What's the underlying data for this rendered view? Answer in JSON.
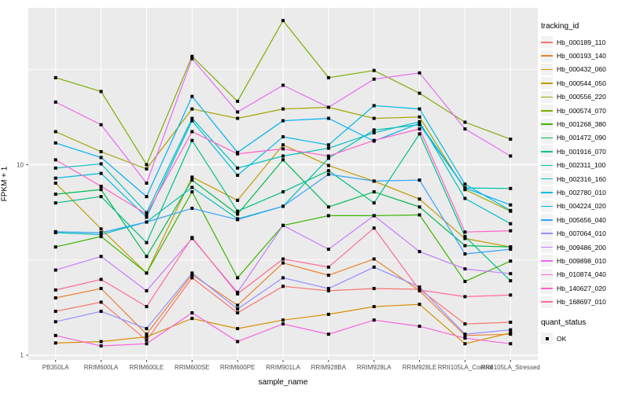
{
  "figure": {
    "xlabel": "sample_name",
    "ylabel": "FPKM + 1",
    "legend_title": "tracking_id",
    "quant_legend_title": "quant_status",
    "quant_legend_item": "OK"
  },
  "colors": {
    "panel_bg": "#EBEBEB",
    "grid": "#FFFFFF",
    "tick": "#333333",
    "tick_label": "#4D4D4D",
    "marker": "#000000",
    "legend_key_bg": "#F2F2F2"
  },
  "chart_data": {
    "type": "line",
    "title": "",
    "xlabel": "sample_name",
    "ylabel": "FPKM + 1",
    "yscale": "log10",
    "ylim": [
      0.95,
      66
    ],
    "yticks": [
      1,
      10
    ],
    "ytick_labels": [
      "1",
      "10"
    ],
    "minor_gridlines": [
      3.162,
      31.62
    ],
    "grid": true,
    "legend_position": "right",
    "legend_title": "tracking_id",
    "marker": "black-square",
    "marker_legend": {
      "title": "quant_status",
      "items": [
        "OK"
      ]
    },
    "categories": [
      "PB350LA",
      "RRIM600LA",
      "RRIM600LE",
      "RRIM600SE",
      "RRIM600PE",
      "RRIM901LA",
      "RRIM928BA",
      "RRIM928LA",
      "RRIM928LE",
      "RRII105LA_Control",
      "RRII105LA_Stressed"
    ],
    "series": [
      {
        "name": "Hb_000189_110",
        "color": "#F8766D",
        "values": [
          1.7,
          1.9,
          1.2,
          2.55,
          1.67,
          2.3,
          2.18,
          2.24,
          2.22,
          1.46,
          1.49
        ]
      },
      {
        "name": "Hb_000193_140",
        "color": "#EA8331",
        "values": [
          2.0,
          2.24,
          1.29,
          2.65,
          1.83,
          3.05,
          2.63,
          3.2,
          2.18,
          1.27,
          1.29
        ]
      },
      {
        "name": "Hb_000432_060",
        "color": "#D89000",
        "values": [
          1.16,
          1.18,
          1.25,
          1.56,
          1.38,
          1.53,
          1.64,
          1.8,
          1.85,
          1.15,
          1.31
        ]
      },
      {
        "name": "Hb_000544_050",
        "color": "#C09B00",
        "values": [
          8.0,
          4.6,
          2.7,
          8.6,
          6.5,
          12.7,
          9.9,
          8.2,
          6.6,
          4.1,
          3.7
        ]
      },
      {
        "name": "Hb_000556_220",
        "color": "#A3A500",
        "values": [
          14.9,
          11.7,
          9.5,
          19.6,
          17.5,
          19.6,
          20.0,
          17.5,
          17.8,
          7.4,
          5.7
        ]
      },
      {
        "name": "Hb_000574_070",
        "color": "#7CAE00",
        "values": [
          28.6,
          24.2,
          10.0,
          37.0,
          21.5,
          57.0,
          28.6,
          31.2,
          23.7,
          16.7,
          13.6
        ]
      },
      {
        "name": "Hb_001268_380",
        "color": "#39B600",
        "values": [
          3.7,
          4.2,
          2.7,
          7.2,
          2.55,
          4.8,
          5.4,
          5.4,
          5.45,
          2.44,
          3.12
        ]
      },
      {
        "name": "Hb_001472_090",
        "color": "#00BB4E",
        "values": [
          7.0,
          7.4,
          3.3,
          8.3,
          5.5,
          10.6,
          6.0,
          7.2,
          6.0,
          3.76,
          3.7
        ]
      },
      {
        "name": "Hb_001916_070",
        "color": "#00C087",
        "values": [
          6.3,
          6.8,
          3.9,
          13.4,
          5.7,
          7.2,
          9.3,
          6.3,
          14.5,
          4.2,
          2.46
        ]
      },
      {
        "name": "Hb_002311_100",
        "color": "#00C0AF",
        "values": [
          4.4,
          4.3,
          5.0,
          7.6,
          5.2,
          6.05,
          10.8,
          15.2,
          16.2,
          7.55,
          7.5
        ]
      },
      {
        "name": "Hb_002316_160",
        "color": "#00BFC4",
        "values": [
          9.6,
          10.1,
          5.6,
          17.5,
          9.6,
          11.1,
          12.2,
          14.7,
          16.8,
          6.65,
          4.9
        ]
      },
      {
        "name": "Hb_002780_010",
        "color": "#00BAE0",
        "values": [
          8.5,
          9.0,
          5.3,
          17.0,
          8.8,
          14.0,
          12.7,
          20.4,
          19.6,
          7.9,
          5.75
        ]
      },
      {
        "name": "Hb_004224_020",
        "color": "#00B0F6",
        "values": [
          13.0,
          10.9,
          6.8,
          22.8,
          11.6,
          17.0,
          17.5,
          13.3,
          16.5,
          7.55,
          6.15
        ]
      },
      {
        "name": "Hb_005656_040",
        "color": "#35A2FF",
        "values": [
          4.45,
          4.4,
          5.0,
          5.9,
          5.15,
          6.05,
          8.9,
          8.2,
          8.3,
          3.4,
          3.6
        ]
      },
      {
        "name": "Hb_007064_010",
        "color": "#9590FF",
        "values": [
          1.5,
          1.7,
          1.38,
          2.7,
          1.75,
          2.55,
          2.24,
          2.9,
          2.28,
          1.29,
          1.36
        ]
      },
      {
        "name": "Hb_009486_200",
        "color": "#C77CFF",
        "values": [
          2.8,
          3.3,
          2.18,
          4.1,
          2.14,
          4.8,
          3.6,
          5.4,
          3.5,
          2.84,
          2.68
        ]
      },
      {
        "name": "Hb_009898_010",
        "color": "#E76BF3",
        "values": [
          21.3,
          16.2,
          8.0,
          36.0,
          18.9,
          26.1,
          20.0,
          28.1,
          30.3,
          15.4,
          11.1
        ]
      },
      {
        "name": "Hb_010874_040",
        "color": "#FA62DB",
        "values": [
          1.27,
          1.12,
          1.15,
          1.67,
          1.18,
          1.46,
          1.29,
          1.53,
          1.42,
          1.23,
          1.15
        ]
      },
      {
        "name": "Hb_140627_020",
        "color": "#FF61C9",
        "values": [
          10.6,
          7.7,
          5.5,
          14.9,
          11.4,
          12.1,
          11.1,
          13.4,
          15.4,
          4.43,
          4.5
        ]
      },
      {
        "name": "Hb_168697_010",
        "color": "#FF6A98",
        "values": [
          2.2,
          2.5,
          1.8,
          4.15,
          2.1,
          3.2,
          2.9,
          4.65,
          2.2,
          2.03,
          2.07
        ]
      }
    ]
  }
}
